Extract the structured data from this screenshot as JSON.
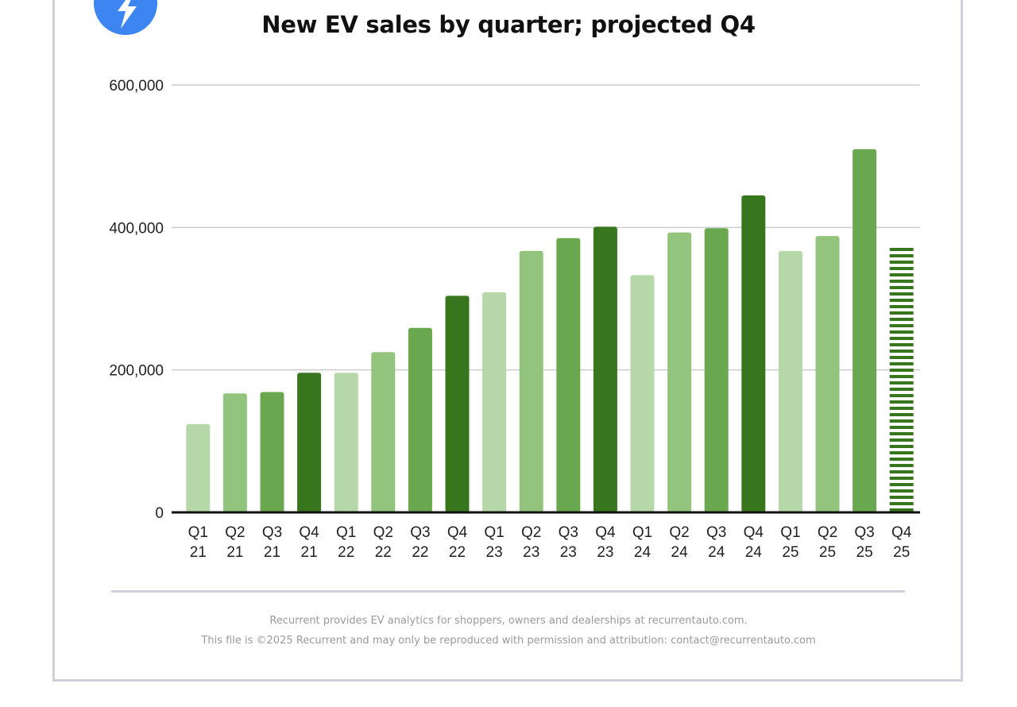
{
  "brand": {
    "logo_icon": "lightning-bolt-icon",
    "logo_color": "#3d85f0"
  },
  "chart_data": {
    "type": "bar",
    "title": "New EV sales by quarter; projected Q4",
    "xlabel": "",
    "ylabel": "",
    "ylim": [
      0,
      600000
    ],
    "yticks": [
      0,
      200000,
      400000,
      600000
    ],
    "ytick_labels": [
      "0",
      "200,000",
      "400,000",
      "600,000"
    ],
    "grid": true,
    "legend": "none",
    "categories": [
      {
        "q": "Q1",
        "y": "21"
      },
      {
        "q": "Q2",
        "y": "21"
      },
      {
        "q": "Q3",
        "y": "21"
      },
      {
        "q": "Q4",
        "y": "21"
      },
      {
        "q": "Q1",
        "y": "22"
      },
      {
        "q": "Q2",
        "y": "22"
      },
      {
        "q": "Q3",
        "y": "22"
      },
      {
        "q": "Q4",
        "y": "22"
      },
      {
        "q": "Q1",
        "y": "23"
      },
      {
        "q": "Q2",
        "y": "23"
      },
      {
        "q": "Q3",
        "y": "23"
      },
      {
        "q": "Q4",
        "y": "23"
      },
      {
        "q": "Q1",
        "y": "24"
      },
      {
        "q": "Q2",
        "y": "24"
      },
      {
        "q": "Q3",
        "y": "24"
      },
      {
        "q": "Q4",
        "y": "24"
      },
      {
        "q": "Q1",
        "y": "25"
      },
      {
        "q": "Q2",
        "y": "25"
      },
      {
        "q": "Q3",
        "y": "25"
      },
      {
        "q": "Q4",
        "y": "25"
      }
    ],
    "values": [
      124000,
      167000,
      169000,
      196000,
      196000,
      225000,
      259000,
      304000,
      309000,
      367000,
      385000,
      401000,
      333000,
      393000,
      399000,
      445000,
      367000,
      388000,
      510000,
      373000
    ],
    "projected": [
      false,
      false,
      false,
      false,
      false,
      false,
      false,
      false,
      false,
      false,
      false,
      false,
      false,
      false,
      false,
      false,
      false,
      false,
      false,
      true
    ],
    "quarter_colors": {
      "Q1": "#b6d7a8",
      "Q2": "#93c47d",
      "Q3": "#6aa84f",
      "Q4": "#38761d"
    },
    "projected_style": "horizontal-stripes"
  },
  "footer": {
    "line1": "Recurrent provides EV analytics for shoppers, owners and dealerships at recurrentauto.com.",
    "line2": "This file is ©2025 Recurrent and may only be reproduced with permission and attribution: contact@recurrentauto.com"
  }
}
